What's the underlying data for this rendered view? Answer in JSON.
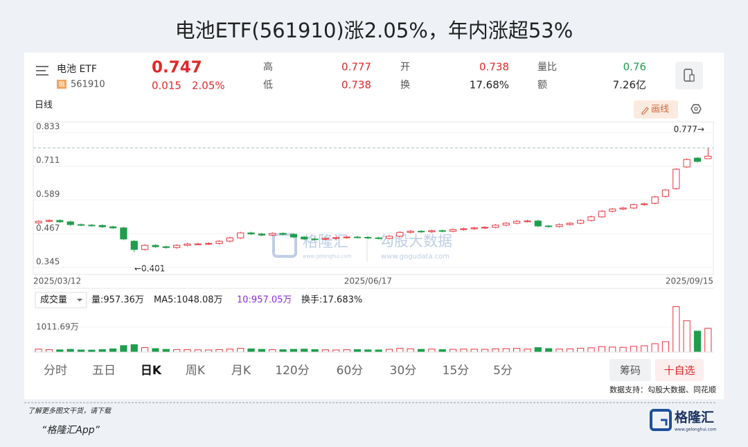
{
  "title": "电池ETF(561910)涨2.05%，年内涨超53%",
  "quote": {
    "name": "电池 ETF",
    "badge": "融",
    "code": "561910",
    "price": "0.747",
    "change": "0.015",
    "change_pct": "2.05%",
    "high_label": "高",
    "high": "0.777",
    "low_label": "低",
    "low": "0.738",
    "open_label": "开",
    "open": "0.738",
    "turnover_label": "换",
    "turnover": "17.68%",
    "volume_ratio_label": "量比",
    "volume_ratio": "0.76",
    "amount_label": "额",
    "amount": "7.26亿"
  },
  "chart_header": {
    "period": "日线",
    "draw_button": "画线"
  },
  "volume_header": {
    "selector": "成交量",
    "volume": "量:957.36万",
    "ma5": "MA5:1048.08万",
    "ma10": "10:957.05万",
    "turnover": "换手:17.683%"
  },
  "watermark": {
    "brand": "格隆汇",
    "brand_url": "www.gelonghui.com",
    "partner": "勾股大数据",
    "partner_url": "www.gogudata.com"
  },
  "tabs": [
    "分时",
    "五日",
    "日K",
    "周K",
    "月K",
    "120分",
    "60分",
    "30分",
    "15分",
    "5分"
  ],
  "buttons": [
    "筹码",
    "十自选"
  ],
  "source": "数据支持：勾股大数据、同花顺",
  "footer": {
    "note": "了解更多图文干货，请下载",
    "app": "“格隆汇App”",
    "logo": "格隆汇",
    "logo_url": "www.gelonghui.com"
  },
  "chart_data": [
    {
      "type": "candlestick",
      "categories": [
        "2025/03/12",
        null,
        null,
        null,
        null,
        null,
        null,
        null,
        null,
        null,
        null,
        null,
        null,
        null,
        null,
        null,
        null,
        null,
        null,
        null,
        null,
        null,
        null,
        null,
        null,
        null,
        null,
        null,
        null,
        null,
        null,
        "2025/06/17",
        null,
        null,
        null,
        null,
        null,
        null,
        null,
        null,
        null,
        null,
        null,
        null,
        null,
        null,
        null,
        null,
        null,
        null,
        null,
        null,
        null,
        null,
        null,
        null,
        null,
        null,
        null,
        null,
        null,
        null,
        null,
        "2025/09/15"
      ],
      "open": [
        0.506,
        0.512,
        0.515,
        0.51,
        0.5,
        0.498,
        0.497,
        0.492,
        0.488,
        0.44,
        0.41,
        0.425,
        0.42,
        0.417,
        0.425,
        0.43,
        0.43,
        0.432,
        0.44,
        0.452,
        0.47,
        0.466,
        0.462,
        0.468,
        0.465,
        0.455,
        0.448,
        0.447,
        0.45,
        0.453,
        0.455,
        0.454,
        0.452,
        0.45,
        0.458,
        0.472,
        0.476,
        0.474,
        0.478,
        0.476,
        0.482,
        0.485,
        0.488,
        0.49,
        0.498,
        0.505,
        0.512,
        0.513,
        0.495,
        0.493,
        0.5,
        0.505,
        0.515,
        0.528,
        0.548,
        0.556,
        0.56,
        0.572,
        0.577,
        0.602,
        0.63,
        0.708,
        0.74,
        0.738
      ],
      "high": [
        0.516,
        0.519,
        0.519,
        0.514,
        0.504,
        0.502,
        0.501,
        0.496,
        0.492,
        0.444,
        0.429,
        0.429,
        0.424,
        0.429,
        0.434,
        0.434,
        0.436,
        0.444,
        0.456,
        0.474,
        0.474,
        0.47,
        0.472,
        0.472,
        0.469,
        0.459,
        0.452,
        0.454,
        0.457,
        0.459,
        0.459,
        0.458,
        0.456,
        0.462,
        0.476,
        0.48,
        0.48,
        0.482,
        0.482,
        0.486,
        0.489,
        0.492,
        0.494,
        0.502,
        0.509,
        0.516,
        0.517,
        0.517,
        0.499,
        0.504,
        0.509,
        0.519,
        0.532,
        0.552,
        0.56,
        0.564,
        0.576,
        0.579,
        0.604,
        0.629,
        0.704,
        0.739,
        0.744,
        0.777
      ],
      "low": [
        0.502,
        0.508,
        0.506,
        0.496,
        0.494,
        0.493,
        0.488,
        0.484,
        0.444,
        0.401,
        0.406,
        0.416,
        0.413,
        0.413,
        0.421,
        0.426,
        0.426,
        0.428,
        0.436,
        0.448,
        0.462,
        0.458,
        0.458,
        0.461,
        0.451,
        0.444,
        0.443,
        0.443,
        0.446,
        0.449,
        0.45,
        0.448,
        0.446,
        0.446,
        0.454,
        0.468,
        0.47,
        0.47,
        0.472,
        0.472,
        0.478,
        0.481,
        0.484,
        0.486,
        0.494,
        0.501,
        0.508,
        0.491,
        0.489,
        0.489,
        0.496,
        0.501,
        0.511,
        0.524,
        0.544,
        0.552,
        0.556,
        0.568,
        0.573,
        0.598,
        0.626,
        0.704,
        0.724,
        0.738
      ],
      "close": [
        0.512,
        0.515,
        0.51,
        0.5,
        0.498,
        0.497,
        0.492,
        0.488,
        0.448,
        0.41,
        0.425,
        0.42,
        0.417,
        0.425,
        0.43,
        0.43,
        0.432,
        0.44,
        0.452,
        0.47,
        0.466,
        0.462,
        0.468,
        0.465,
        0.455,
        0.448,
        0.447,
        0.45,
        0.453,
        0.455,
        0.454,
        0.452,
        0.45,
        0.458,
        0.472,
        0.476,
        0.474,
        0.478,
        0.476,
        0.482,
        0.485,
        0.488,
        0.49,
        0.498,
        0.505,
        0.512,
        0.513,
        0.495,
        0.493,
        0.5,
        0.505,
        0.515,
        0.528,
        0.548,
        0.556,
        0.56,
        0.572,
        0.575,
        0.6,
        0.625,
        0.7,
        0.735,
        0.728,
        0.747
      ],
      "up_color": "#e8323c",
      "down_color": "#1f9d4c",
      "ylim": [
        0.32,
        0.8655
      ],
      "yticks": [
        0.345,
        0.467,
        0.589,
        0.711,
        0.833
      ],
      "grid": true,
      "annotations": [
        "0.777→",
        "←0.401"
      ]
    },
    {
      "type": "bar",
      "values": [
        120,
        95,
        90,
        110,
        85,
        80,
        100,
        130,
        260,
        300,
        180,
        140,
        110,
        100,
        95,
        90,
        85,
        100,
        120,
        150,
        130,
        110,
        100,
        95,
        110,
        120,
        100,
        90,
        85,
        95,
        100,
        90,
        85,
        110,
        150,
        130,
        110,
        120,
        100,
        110,
        120,
        115,
        110,
        130,
        140,
        150,
        120,
        180,
        140,
        120,
        130,
        150,
        170,
        220,
        200,
        190,
        230,
        253,
        337,
        421,
        1830,
        1264,
        843,
        957.36
      ],
      "ylim": [
        0,
        1900
      ],
      "yticks": [
        {
          "value": 1011.69,
          "label": "1011.69万"
        }
      ]
    }
  ]
}
